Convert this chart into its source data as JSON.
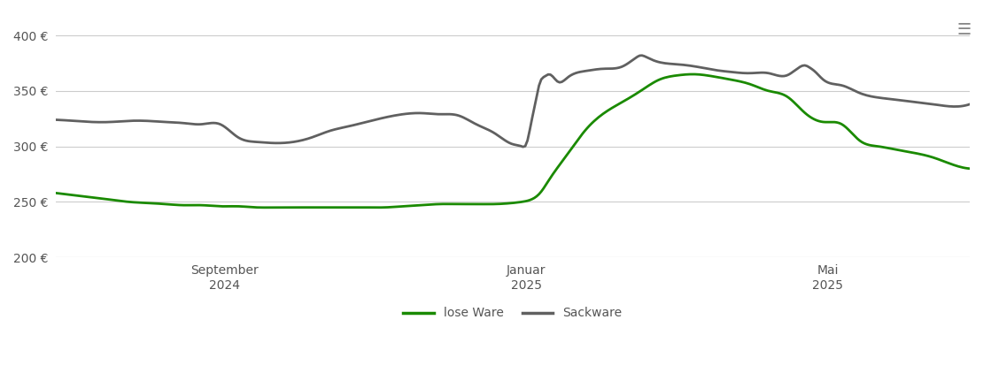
{
  "ylim": [
    200,
    420
  ],
  "yticks": [
    200,
    250,
    300,
    350,
    400
  ],
  "ytick_labels": [
    "200 €",
    "250 €",
    "300 €",
    "350 €",
    "400 €"
  ],
  "xtick_labels": [
    "September\n2024",
    "Januar\n2025",
    "Mai\n2025"
  ],
  "xtick_positions": [
    0.185,
    0.515,
    0.845
  ],
  "line_lose_color": "#1a8a00",
  "line_sack_color": "#606060",
  "line_width": 2.0,
  "legend_labels": [
    "lose Ware",
    "Sackware"
  ],
  "background_color": "#ffffff",
  "grid_color": "#cccccc",
  "lose_ware_x": [
    0.0,
    0.02,
    0.04,
    0.06,
    0.08,
    0.1,
    0.12,
    0.14,
    0.16,
    0.18,
    0.2,
    0.22,
    0.24,
    0.26,
    0.28,
    0.3,
    0.32,
    0.34,
    0.36,
    0.38,
    0.4,
    0.42,
    0.44,
    0.46,
    0.48,
    0.5,
    0.51,
    0.52,
    0.53,
    0.54,
    0.56,
    0.58,
    0.6,
    0.62,
    0.64,
    0.66,
    0.68,
    0.7,
    0.72,
    0.74,
    0.76,
    0.78,
    0.8,
    0.82,
    0.84,
    0.86,
    0.88,
    0.9,
    0.92,
    0.94,
    0.96,
    0.98,
    1.0
  ],
  "lose_ware_y": [
    258,
    256,
    254,
    252,
    250,
    249,
    248,
    247,
    247,
    246,
    246,
    245,
    245,
    245,
    245,
    245,
    245,
    245,
    245,
    246,
    247,
    248,
    248,
    248,
    248,
    249,
    250,
    252,
    258,
    270,
    293,
    315,
    330,
    340,
    350,
    360,
    364,
    365,
    363,
    360,
    356,
    350,
    345,
    330,
    322,
    320,
    305,
    300,
    297,
    294,
    290,
    284,
    280
  ],
  "sack_ware_x": [
    0.0,
    0.02,
    0.04,
    0.06,
    0.08,
    0.1,
    0.12,
    0.14,
    0.16,
    0.18,
    0.2,
    0.22,
    0.24,
    0.26,
    0.28,
    0.3,
    0.32,
    0.34,
    0.36,
    0.38,
    0.4,
    0.42,
    0.44,
    0.46,
    0.48,
    0.5,
    0.51,
    0.515,
    0.52,
    0.525,
    0.53,
    0.535,
    0.54,
    0.545,
    0.55,
    0.56,
    0.58,
    0.6,
    0.62,
    0.635,
    0.64,
    0.645,
    0.65,
    0.66,
    0.68,
    0.7,
    0.72,
    0.74,
    0.76,
    0.78,
    0.8,
    0.815,
    0.82,
    0.825,
    0.83,
    0.84,
    0.86,
    0.88,
    0.9,
    0.92,
    0.94,
    0.96,
    0.98,
    1.0
  ],
  "sack_ware_y": [
    324,
    323,
    322,
    322,
    323,
    323,
    322,
    321,
    320,
    320,
    308,
    304,
    303,
    304,
    308,
    314,
    318,
    322,
    326,
    329,
    330,
    329,
    328,
    320,
    312,
    302,
    300,
    302,
    320,
    340,
    358,
    363,
    365,
    362,
    358,
    362,
    368,
    370,
    372,
    380,
    382,
    381,
    379,
    376,
    374,
    372,
    369,
    367,
    366,
    366,
    364,
    372,
    373,
    371,
    368,
    360,
    355,
    348,
    344,
    342,
    340,
    338,
    336,
    338
  ]
}
